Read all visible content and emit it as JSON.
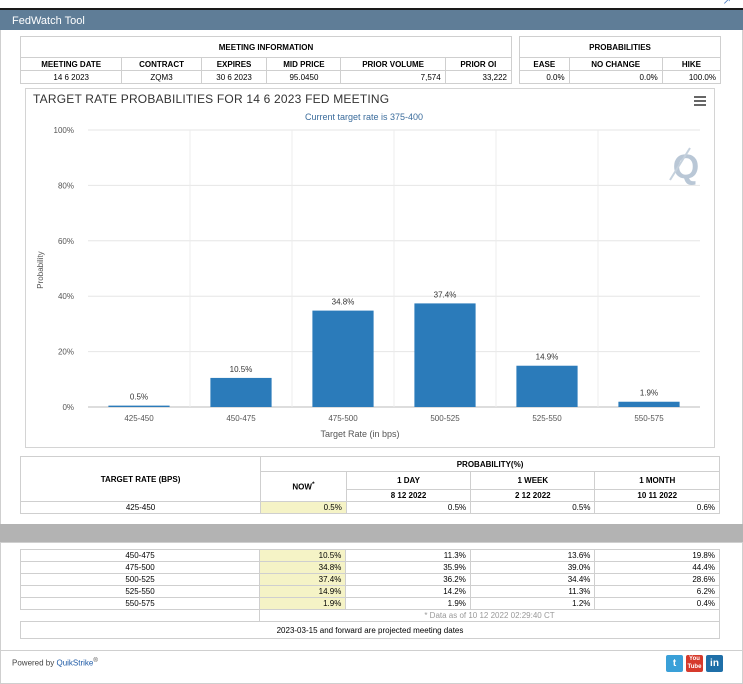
{
  "app": {
    "title": "FedWatch Tool"
  },
  "meeting_info": {
    "header": "MEETING INFORMATION",
    "columns": [
      "MEETING DATE",
      "CONTRACT",
      "EXPIRES",
      "MID PRICE",
      "PRIOR VOLUME",
      "PRIOR OI"
    ],
    "row": [
      "14 6 2023",
      "ZQM3",
      "30 6 2023",
      "95.0450",
      "7,574",
      "33,222"
    ]
  },
  "probabilities": {
    "header": "PROBABILITIES",
    "columns": [
      "EASE",
      "NO CHANGE",
      "HIKE"
    ],
    "row": [
      "0.0%",
      "0.0%",
      "100.0%"
    ]
  },
  "chart_data": {
    "type": "bar",
    "title": "TARGET RATE PROBABILITIES FOR 14 6 2023 FED MEETING",
    "subtitle": "Current target rate is 375-400",
    "xlabel": "Target Rate (in bps)",
    "ylabel": "Probability",
    "categories": [
      "425-450",
      "450-475",
      "475-500",
      "500-525",
      "525-550",
      "550-575"
    ],
    "values": [
      0.5,
      10.5,
      34.8,
      37.4,
      14.9,
      1.9
    ],
    "data_labels": [
      "0.5%",
      "10.5%",
      "34.8%",
      "37.4%",
      "14.9%",
      "1.9%"
    ],
    "ylim": [
      0,
      100
    ],
    "yticks": [
      "0%",
      "20%",
      "40%",
      "60%",
      "80%",
      "100%"
    ],
    "grid": true,
    "bar_color": "#2b7bba"
  },
  "target_table": {
    "header_rate": "TARGET RATE (BPS)",
    "header_prob": "PROBABILITY(%)",
    "cols": [
      {
        "line1": "NOW",
        "line2": ""
      },
      {
        "line1": "1 DAY",
        "line2": "8 12 2022"
      },
      {
        "line1": "1 WEEK",
        "line2": "2 12 2022"
      },
      {
        "line1": "1 MONTH",
        "line2": "10 11 2022"
      }
    ],
    "now_marker": "*",
    "rows_top": [
      [
        "425-450",
        "0.5%",
        "0.5%",
        "0.5%",
        "0.6%"
      ]
    ],
    "rows_bottom": [
      [
        "450-475",
        "10.5%",
        "11.3%",
        "13.6%",
        "19.8%"
      ],
      [
        "475-500",
        "34.8%",
        "35.9%",
        "39.0%",
        "44.4%"
      ],
      [
        "500-525",
        "37.4%",
        "36.2%",
        "34.4%",
        "28.6%"
      ],
      [
        "525-550",
        "14.9%",
        "14.2%",
        "11.3%",
        "6.2%"
      ],
      [
        "550-575",
        "1.9%",
        "1.9%",
        "1.2%",
        "0.4%"
      ]
    ],
    "data_note": "* Data as of 10 12 2022 02:29:40 CT",
    "projection_note": "2023-03-15 and forward are projected meeting dates"
  },
  "footer": {
    "powered_by": "Powered by",
    "brand": "QuikStrike",
    "brand_mark": "®",
    "social": [
      "twitter-icon",
      "youtube-icon",
      "linkedin-icon"
    ],
    "social_glyphs": [
      "t",
      "You\nTube",
      "in"
    ]
  }
}
